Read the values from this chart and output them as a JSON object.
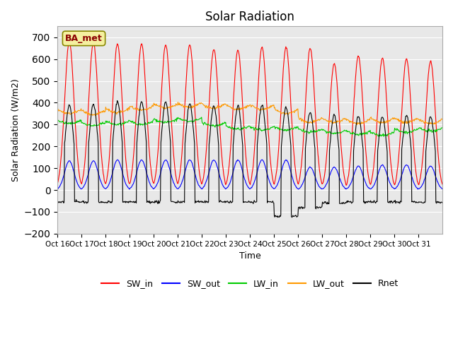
{
  "title": "Solar Radiation",
  "xlabel": "Time",
  "ylabel": "Solar Radiation (W/m2)",
  "ylim": [
    -200,
    750
  ],
  "yticks": [
    -200,
    -100,
    0,
    100,
    200,
    300,
    400,
    500,
    600,
    700
  ],
  "x_labels": [
    "Oct 16",
    "Oct 17",
    "Oct 18",
    "Oct 19",
    "Oct 20",
    "Oct 21",
    "Oct 22",
    "Oct 23",
    "Oct 24",
    "Oct 25",
    "Oct 26",
    "Oct 27",
    "Oct 28",
    "Oct 29",
    "Oct 30",
    "Oct 31"
  ],
  "legend_label": "BA_met",
  "series_names": [
    "SW_in",
    "SW_out",
    "LW_in",
    "LW_out",
    "Rnet"
  ],
  "colors": {
    "SW_in": "#ff0000",
    "SW_out": "#0000ff",
    "LW_in": "#00cc00",
    "LW_out": "#ff9900",
    "Rnet": "#000000"
  },
  "bg_color": "#e8e8e8",
  "n_days": 16,
  "pts_per_day": 48,
  "SW_in_peaks": [
    680,
    675,
    670,
    670,
    665,
    665,
    645,
    640,
    655,
    655,
    650,
    580,
    615,
    605,
    600,
    590
  ],
  "SW_out_peaks": [
    140,
    140,
    145,
    145,
    145,
    145,
    145,
    145,
    145,
    145,
    110,
    110,
    115,
    120,
    120,
    115
  ],
  "LW_in_base": [
    320,
    310,
    315,
    315,
    325,
    330,
    310,
    295,
    290,
    290,
    280,
    275,
    270,
    265,
    280,
    285
  ],
  "LW_out_base": [
    370,
    365,
    375,
    385,
    395,
    400,
    395,
    390,
    390,
    370,
    330,
    330,
    325,
    330,
    330,
    325
  ],
  "Rnet_night": [
    -55,
    -55,
    -55,
    -55,
    -55,
    -55,
    -55,
    -55,
    -55,
    -120,
    -80,
    -60,
    -55,
    -55,
    -55,
    -55
  ],
  "Rnet_peaks": [
    390,
    395,
    405,
    405,
    405,
    395,
    385,
    385,
    390,
    380,
    355,
    345,
    340,
    335,
    340,
    335
  ]
}
